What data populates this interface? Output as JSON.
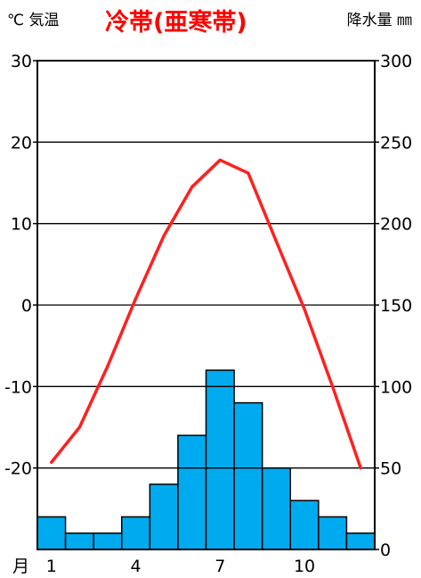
{
  "header": {
    "temp_label": "℃ 気温",
    "title": "冷帯(亜寒帯)",
    "precip_label": "降水量 ㎜"
  },
  "chart_data": {
    "type": "bar+line",
    "title": "冷帯(亜寒帯)",
    "x_label": "月",
    "x": [
      1,
      2,
      3,
      4,
      5,
      6,
      7,
      8,
      9,
      10,
      11,
      12
    ],
    "x_tick_labels": [
      "1",
      "4",
      "7",
      "10"
    ],
    "x_tick_positions": [
      1,
      4,
      7,
      10
    ],
    "series": [
      {
        "name": "降水量",
        "axis": "right",
        "kind": "bar",
        "unit": "mm",
        "color": "#00aaee",
        "values": [
          20,
          10,
          10,
          20,
          40,
          70,
          110,
          90,
          50,
          30,
          20,
          10
        ]
      },
      {
        "name": "気温",
        "axis": "left",
        "kind": "line",
        "unit": "℃",
        "color": "#ff2020",
        "values": [
          -19.3,
          -15.0,
          -7.5,
          0.8,
          8.5,
          14.5,
          17.8,
          16.2,
          7.8,
          -0.5,
          -10.0,
          -20.0
        ]
      }
    ],
    "y_left": {
      "label": "℃ 気温",
      "range": [
        -30,
        30
      ],
      "ticks": [
        30,
        20,
        10,
        0,
        -10,
        -20
      ]
    },
    "y_right": {
      "label": "降水量 ㎜",
      "range": [
        0,
        300
      ],
      "ticks": [
        300,
        250,
        200,
        150,
        100,
        50,
        0
      ]
    },
    "grid": true
  }
}
